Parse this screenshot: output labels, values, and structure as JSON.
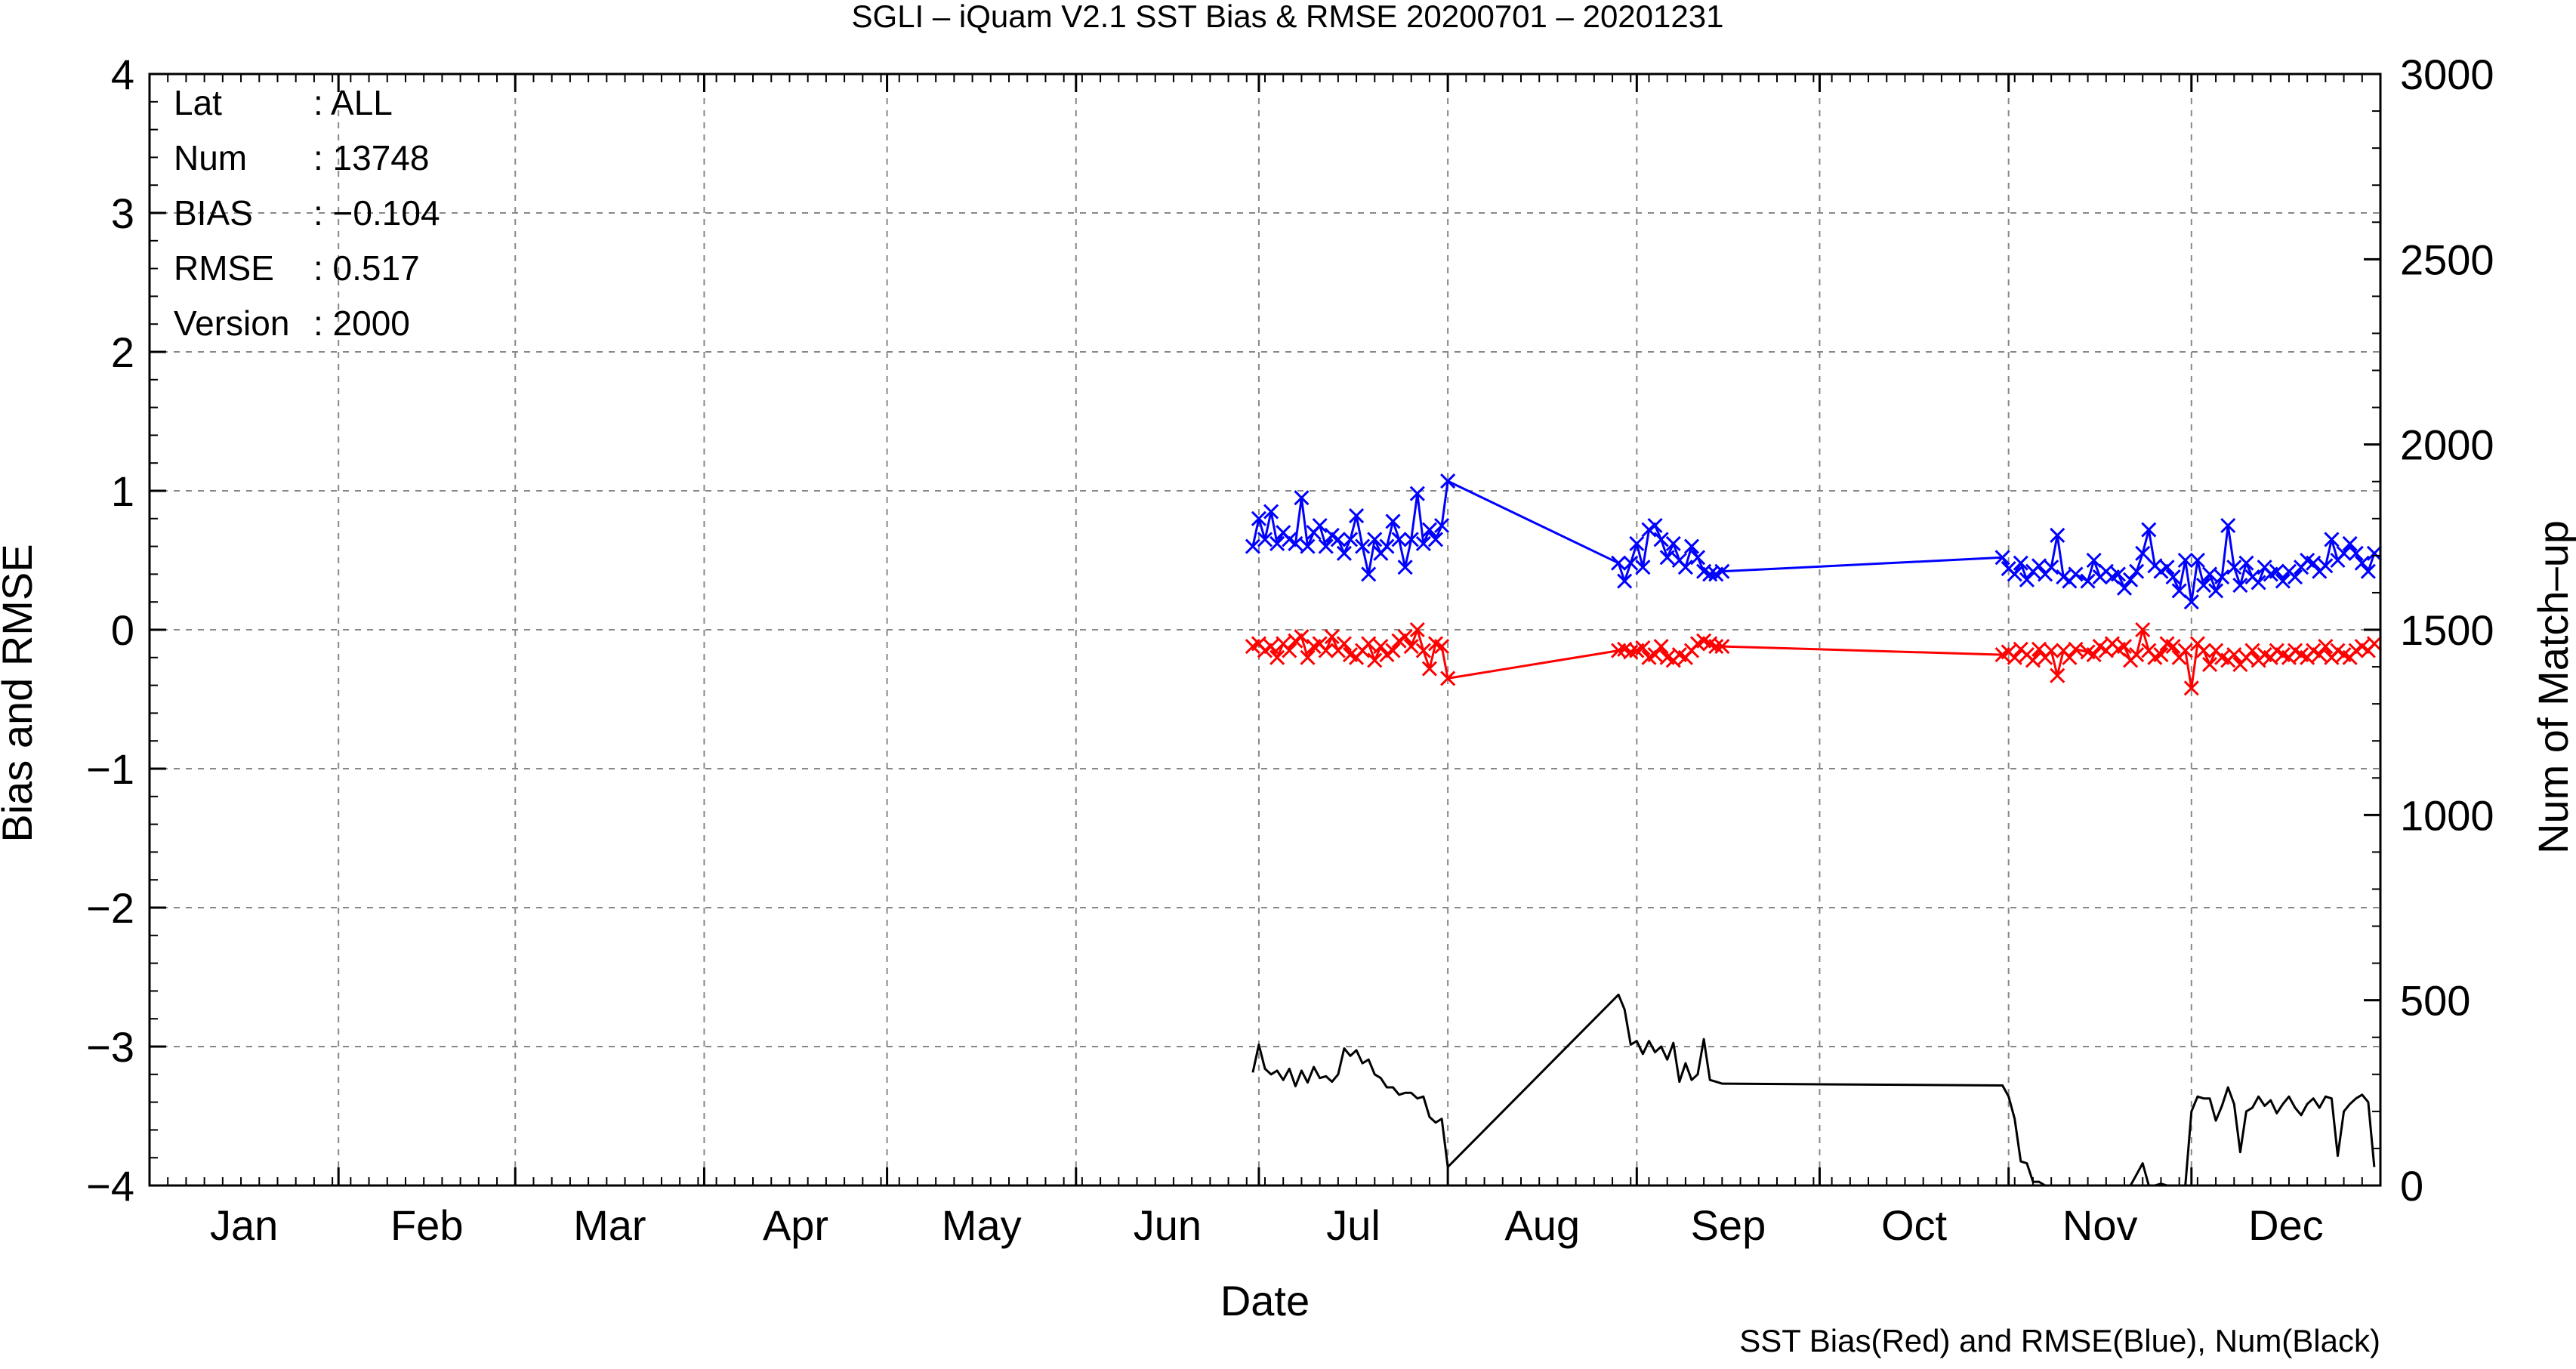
{
  "chart_data": {
    "type": "line",
    "title": "SGLI – iQuam V2.1 SST Bias & RMSE 20200701 – 20201231",
    "xlabel": "Date",
    "ylabel": "Bias and RMSE",
    "y2label": "Num of Match–up",
    "footnote": "SST Bias(Red) and RMSE(Blue), Num(Black)",
    "categories": [
      "Jan",
      "Feb",
      "Mar",
      "Apr",
      "May",
      "Jun",
      "Jul",
      "Aug",
      "Sep",
      "Oct",
      "Nov",
      "Dec"
    ],
    "ylim": [
      -4,
      4
    ],
    "y2lim": [
      0,
      3000
    ],
    "yticks": [
      "−4",
      "−3",
      "−2",
      "−1",
      "0",
      "1",
      "2",
      "3",
      "4"
    ],
    "y2ticks": [
      "0",
      "500",
      "1000",
      "1500",
      "2000",
      "2500",
      "3000"
    ],
    "grid": true,
    "info": {
      "rows": [
        {
          "key": "Lat",
          "value": ": ALL"
        },
        {
          "key": "Num",
          "value": ": 13748"
        },
        {
          "key": "BIAS",
          "value": ": −0.104"
        },
        {
          "key": "RMSE",
          "value": ": 0.517"
        },
        {
          "key": "Version",
          "value": ": 2000"
        }
      ]
    },
    "series": [
      {
        "name": "RMSE",
        "color": "#0000ff",
        "marker": "x",
        "axis": "left",
        "x": [
          182,
          183,
          184,
          185,
          186,
          187,
          188,
          189,
          190,
          191,
          192,
          193,
          194,
          195,
          196,
          197,
          198,
          199,
          200,
          201,
          202,
          203,
          204,
          205,
          206,
          207,
          208,
          209,
          210,
          211,
          212,
          213,
          214,
          242,
          243,
          244,
          245,
          246,
          247,
          248,
          249,
          250,
          251,
          252,
          253,
          254,
          255,
          256,
          257,
          258,
          259,
          305,
          306,
          307,
          308,
          309,
          310,
          311,
          312,
          313,
          314,
          315,
          316,
          317,
          319,
          320,
          321,
          322,
          323,
          324,
          325,
          326,
          327,
          328,
          329,
          330,
          331,
          332,
          333,
          334,
          335,
          336,
          337,
          338,
          339,
          340,
          341,
          342,
          343,
          344,
          345,
          346,
          347,
          348,
          349,
          350,
          351,
          352,
          353,
          354,
          355,
          356,
          357,
          358,
          359,
          360,
          361,
          362,
          363,
          364,
          365,
          366
        ],
        "y": [
          0.6,
          0.8,
          0.65,
          0.85,
          0.62,
          0.7,
          0.65,
          0.62,
          0.95,
          0.6,
          0.7,
          0.75,
          0.6,
          0.68,
          0.65,
          0.55,
          0.65,
          0.82,
          0.6,
          0.4,
          0.65,
          0.55,
          0.6,
          0.78,
          0.65,
          0.45,
          0.65,
          0.98,
          0.62,
          0.72,
          0.65,
          0.75,
          1.07,
          0.48,
          0.35,
          0.48,
          0.62,
          0.45,
          0.72,
          0.75,
          0.65,
          0.52,
          0.62,
          0.5,
          0.45,
          0.6,
          0.52,
          0.42,
          0.4,
          0.4,
          0.42,
          0.52,
          0.44,
          0.4,
          0.48,
          0.36,
          0.42,
          0.46,
          0.4,
          0.45,
          0.68,
          0.38,
          0.35,
          0.4,
          0.35,
          0.5,
          0.38,
          0.42,
          0.38,
          0.4,
          0.3,
          0.36,
          0.42,
          0.55,
          0.72,
          0.46,
          0.42,
          0.45,
          0.38,
          0.28,
          0.5,
          0.2,
          0.5,
          0.32,
          0.4,
          0.28,
          0.38,
          0.75,
          0.45,
          0.32,
          0.48,
          0.38,
          0.34,
          0.45,
          0.4,
          0.42,
          0.35,
          0.42,
          0.38,
          0.45,
          0.5,
          0.48,
          0.42,
          0.46,
          0.65,
          0.5,
          0.55,
          0.62,
          0.55,
          0.48,
          0.42,
          0.55
        ]
      },
      {
        "name": "Bias",
        "color": "#ff0000",
        "marker": "x",
        "axis": "left",
        "x": [
          182,
          183,
          184,
          185,
          186,
          187,
          188,
          189,
          190,
          191,
          192,
          193,
          194,
          195,
          196,
          197,
          198,
          199,
          200,
          201,
          202,
          203,
          204,
          205,
          206,
          207,
          208,
          209,
          210,
          211,
          212,
          213,
          214,
          242,
          243,
          244,
          245,
          246,
          247,
          248,
          249,
          250,
          251,
          252,
          253,
          254,
          255,
          256,
          257,
          258,
          259,
          305,
          306,
          307,
          308,
          309,
          310,
          311,
          312,
          313,
          314,
          315,
          316,
          317,
          319,
          320,
          321,
          322,
          323,
          324,
          325,
          326,
          327,
          328,
          329,
          330,
          331,
          332,
          333,
          334,
          335,
          336,
          337,
          338,
          339,
          340,
          341,
          342,
          343,
          344,
          345,
          346,
          347,
          348,
          349,
          350,
          351,
          352,
          353,
          354,
          355,
          356,
          357,
          358,
          359,
          360,
          361,
          362,
          363,
          364,
          365,
          366
        ],
        "y": [
          -0.12,
          -0.1,
          -0.15,
          -0.12,
          -0.2,
          -0.1,
          -0.15,
          -0.08,
          -0.05,
          -0.2,
          -0.12,
          -0.1,
          -0.15,
          -0.05,
          -0.15,
          -0.1,
          -0.18,
          -0.2,
          -0.15,
          -0.1,
          -0.22,
          -0.12,
          -0.18,
          -0.15,
          -0.08,
          -0.05,
          -0.12,
          0.0,
          -0.15,
          -0.28,
          -0.1,
          -0.12,
          -0.35,
          -0.15,
          -0.14,
          -0.16,
          -0.15,
          -0.13,
          -0.2,
          -0.18,
          -0.12,
          -0.2,
          -0.22,
          -0.18,
          -0.2,
          -0.15,
          -0.1,
          -0.08,
          -0.1,
          -0.12,
          -0.12,
          -0.18,
          -0.16,
          -0.2,
          -0.14,
          -0.18,
          -0.22,
          -0.14,
          -0.2,
          -0.15,
          -0.33,
          -0.15,
          -0.2,
          -0.14,
          -0.16,
          -0.18,
          -0.12,
          -0.15,
          -0.1,
          -0.14,
          -0.12,
          -0.22,
          -0.18,
          0.0,
          -0.15,
          -0.2,
          -0.18,
          -0.1,
          -0.12,
          -0.2,
          -0.15,
          -0.42,
          -0.1,
          -0.15,
          -0.25,
          -0.15,
          -0.2,
          -0.22,
          -0.18,
          -0.25,
          -0.2,
          -0.15,
          -0.22,
          -0.18,
          -0.2,
          -0.15,
          -0.18,
          -0.2,
          -0.15,
          -0.18,
          -0.2,
          -0.15,
          -0.18,
          -0.12,
          -0.2,
          -0.15,
          -0.18,
          -0.2,
          -0.15,
          -0.12,
          -0.15,
          -0.1
        ]
      },
      {
        "name": "Num",
        "color": "#000000",
        "marker": "none",
        "axis": "right",
        "x": [
          182,
          183,
          184,
          185,
          186,
          187,
          188,
          189,
          190,
          191,
          192,
          193,
          194,
          195,
          196,
          197,
          198,
          199,
          200,
          201,
          202,
          203,
          204,
          205,
          206,
          207,
          208,
          209,
          210,
          211,
          212,
          213,
          214,
          242,
          243,
          244,
          245,
          246,
          247,
          248,
          249,
          250,
          251,
          252,
          253,
          254,
          255,
          256,
          257,
          258,
          259,
          305,
          306,
          307,
          308,
          309,
          310,
          311,
          312,
          313,
          314,
          315,
          316,
          317,
          319,
          320,
          321,
          322,
          323,
          324,
          325,
          326,
          327,
          328,
          329,
          330,
          331,
          332,
          333,
          334,
          335,
          336,
          337,
          338,
          339,
          340,
          341,
          342,
          343,
          344,
          345,
          346,
          347,
          348,
          349,
          350,
          351,
          352,
          353,
          354,
          355,
          356,
          357,
          358,
          359,
          360,
          361,
          362,
          363,
          364,
          365,
          366
        ],
        "y": [
          305,
          380,
          315,
          300,
          310,
          285,
          315,
          268,
          310,
          278,
          320,
          290,
          295,
          280,
          300,
          370,
          350,
          365,
          330,
          340,
          300,
          290,
          265,
          265,
          245,
          250,
          250,
          235,
          240,
          185,
          170,
          180,
          50,
          515,
          475,
          380,
          390,
          355,
          390,
          360,
          375,
          340,
          385,
          280,
          330,
          285,
          300,
          395,
          285,
          280,
          275,
          270,
          240,
          180,
          65,
          60,
          10,
          10,
          0,
          0,
          0,
          0,
          0,
          0,
          0,
          0,
          0,
          0,
          0,
          0,
          0,
          0,
          30,
          60,
          0,
          0,
          5,
          0,
          0,
          0,
          0,
          200,
          240,
          235,
          235,
          175,
          215,
          265,
          220,
          90,
          200,
          210,
          240,
          215,
          230,
          195,
          220,
          240,
          210,
          190,
          220,
          235,
          210,
          240,
          235,
          80,
          200,
          220,
          235,
          245,
          225,
          50
        ]
      }
    ]
  }
}
